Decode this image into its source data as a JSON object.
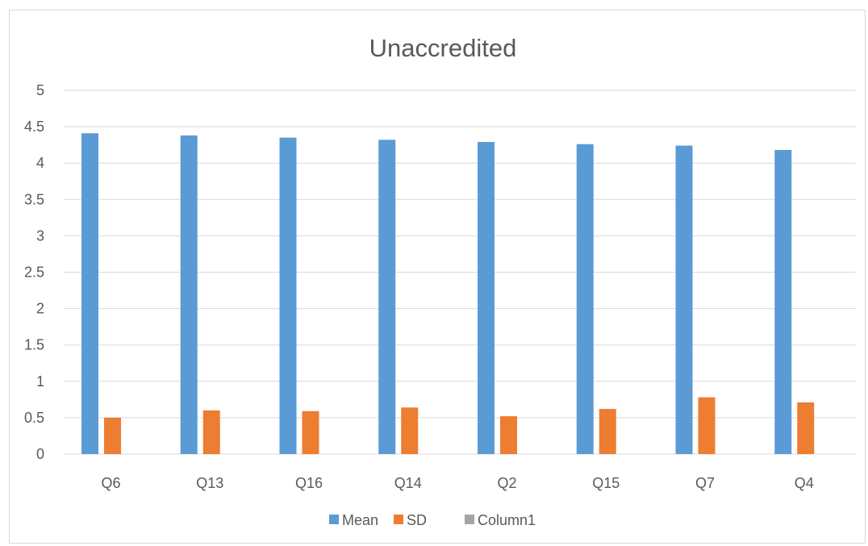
{
  "colors": {
    "mean": "#5b9bd5",
    "sd": "#ed7d31",
    "column1": "#a5a5a5",
    "grid": "#d9d9d9",
    "text": "#595959"
  },
  "chart_data": {
    "type": "bar",
    "title": "Unaccredited",
    "xlabel": "",
    "ylabel": "",
    "categories": [
      "Q6",
      "Q13",
      "Q16",
      "Q14",
      "Q2",
      "Q15",
      "Q7",
      "Q4"
    ],
    "series": [
      {
        "name": "Mean",
        "values": [
          4.41,
          4.38,
          4.35,
          4.32,
          4.29,
          4.26,
          4.24,
          4.18
        ]
      },
      {
        "name": "SD",
        "values": [
          0.5,
          0.6,
          0.59,
          0.64,
          0.52,
          0.62,
          0.78,
          0.71
        ]
      },
      {
        "name": "Column1",
        "values": [
          0,
          0,
          0,
          0,
          0,
          0,
          0,
          0
        ]
      }
    ],
    "ylim": [
      0,
      5
    ],
    "yticks": [
      "0",
      "0.5",
      "1",
      "1.5",
      "2",
      "2.5",
      "3",
      "3.5",
      "4",
      "4.5",
      "5"
    ],
    "grid": true,
    "legend_position": "bottom"
  }
}
